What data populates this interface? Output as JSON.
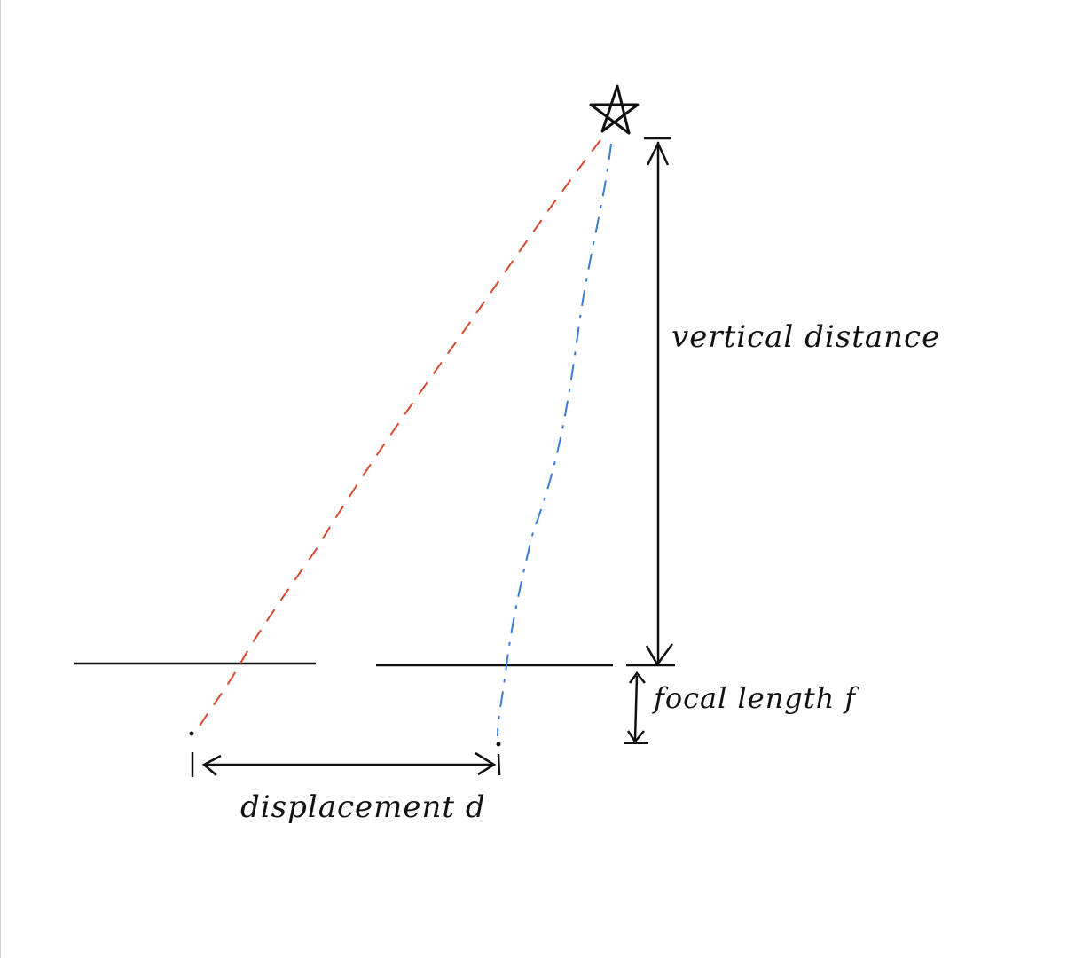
{
  "diagram": {
    "labels": {
      "vertical_distance": "vertical distance",
      "focal_length": "focal length f",
      "displacement": "displacement d"
    },
    "colors": {
      "ink": "#111111",
      "ray_left": "#d9482f",
      "ray_right": "#3a7bd5"
    },
    "icons": {
      "star": "star-icon"
    }
  }
}
